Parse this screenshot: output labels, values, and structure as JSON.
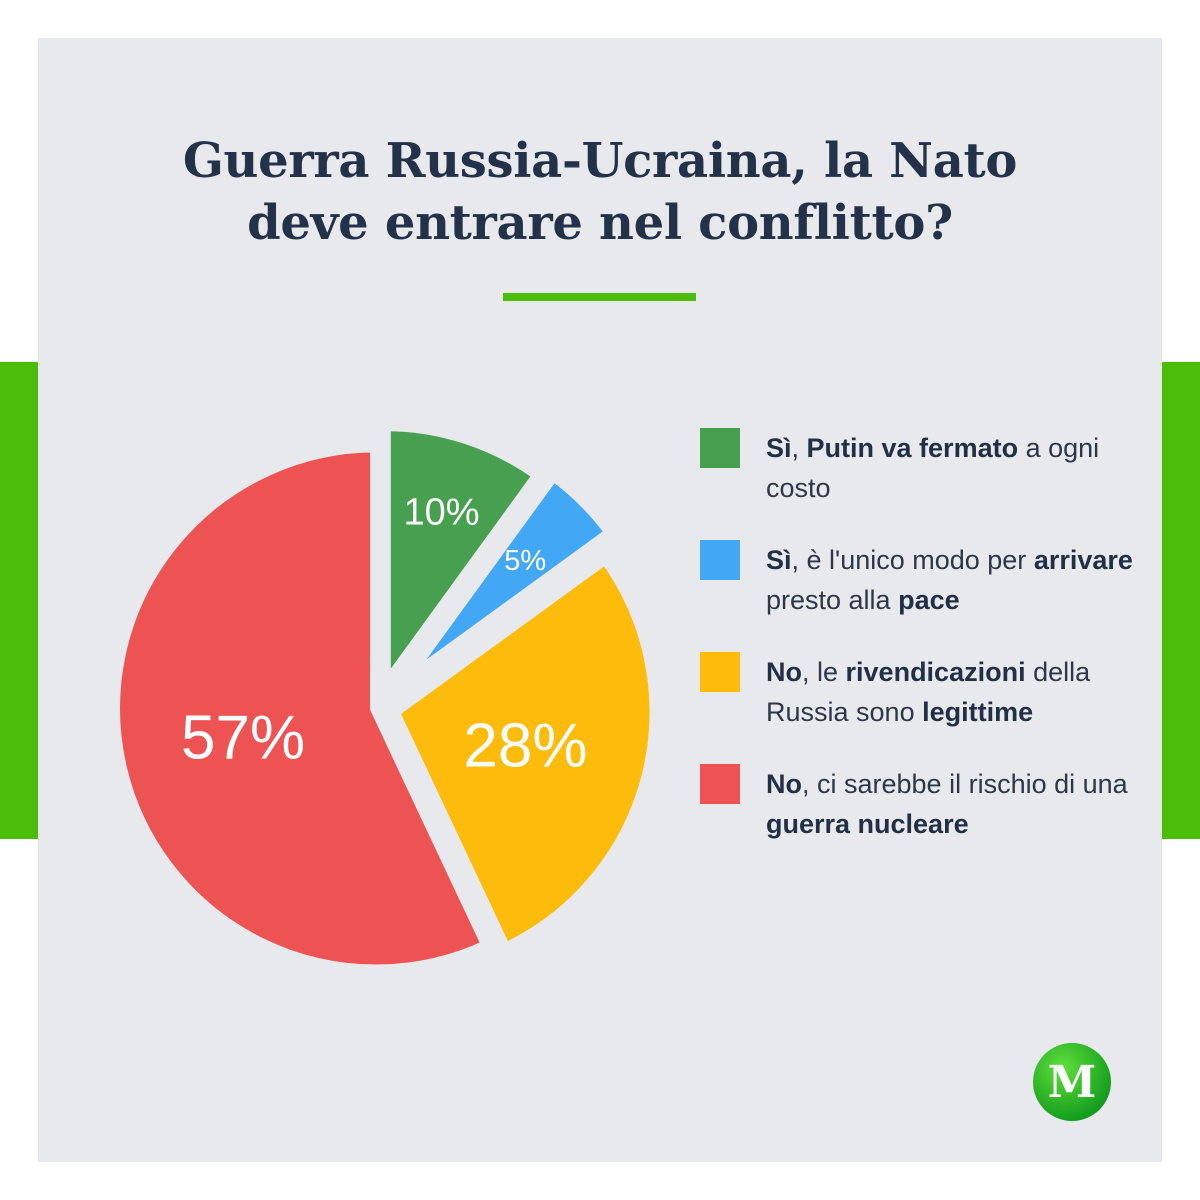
{
  "title": {
    "line1": "Guerra Russia-Ucraina, la Nato",
    "line2": "deve entrare nel conflitto?"
  },
  "logo": {
    "letter": "M",
    "icon": "m-logo-icon"
  },
  "colors": {
    "accent": "#4cbe0a",
    "background": "#e8e9ed",
    "title": "#243249"
  },
  "legend": [
    {
      "color": "#47a050",
      "parts": [
        [
          "Sì",
          true
        ],
        [
          ", ",
          false
        ],
        [
          "Putin va fermato",
          true
        ],
        [
          " a ogni costo",
          false
        ]
      ]
    },
    {
      "color": "#42a8f5",
      "parts": [
        [
          "Sì",
          true
        ],
        [
          ", è l'unico modo per ",
          false
        ],
        [
          "arrivare",
          true
        ],
        [
          " presto alla ",
          false
        ],
        [
          "pace",
          true
        ]
      ]
    },
    {
      "color": "#fdbb0c",
      "parts": [
        [
          "No",
          true
        ],
        [
          ", le ",
          false
        ],
        [
          "rivendicazioni",
          true
        ],
        [
          " della Russia sono ",
          false
        ],
        [
          "legittime",
          true
        ]
      ]
    },
    {
      "color": "#ed5353",
      "parts": [
        [
          "No",
          true
        ],
        [
          ", ci sarebbe il rischio di una ",
          false
        ],
        [
          "guerra nucleare",
          true
        ]
      ]
    }
  ],
  "chart_data": {
    "type": "pie",
    "title": "Guerra Russia-Ucraina, la Nato deve entrare nel conflitto?",
    "start_angle_deg": 0,
    "direction": "clockwise",
    "slices": [
      {
        "label": "Sì, Putin va fermato a ogni costo",
        "value": 10,
        "display": "10%",
        "color": "#47a050"
      },
      {
        "label": "Sì, è l'unico modo per arrivare presto alla pace",
        "value": 5,
        "display": "5%",
        "color": "#42a8f5"
      },
      {
        "label": "No, le rivendicazioni della Russia sono legittime",
        "value": 28,
        "display": "28%",
        "color": "#fdbb0c"
      },
      {
        "label": "No, ci sarebbe il rischio di una guerra nucleare",
        "value": 57,
        "display": "57%",
        "color": "#ed5353"
      }
    ],
    "legend_position": "right",
    "data_labels": true
  }
}
